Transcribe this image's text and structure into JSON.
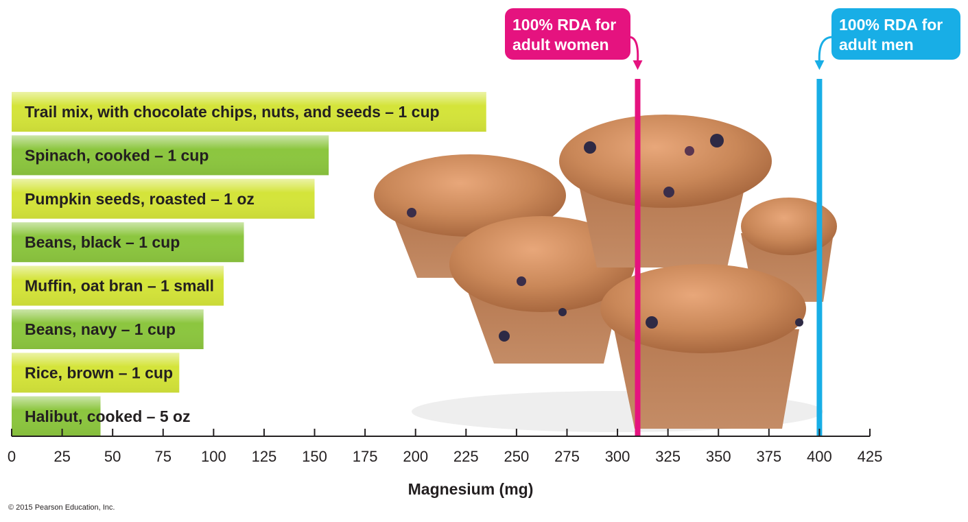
{
  "chart_data": {
    "type": "bar",
    "orientation": "horizontal",
    "categories": [
      "Trail mix, with chocolate chips, nuts, and seeds – 1 cup",
      "Spinach, cooked – 1 cup",
      "Pumpkin seeds, roasted – 1 oz",
      "Beans, black – 1 cup",
      "Muffin, oat bran – 1 small",
      "Beans, navy – 1 cup",
      "Rice, brown – 1 cup",
      "Halibut, cooked – 5 oz"
    ],
    "values": [
      235,
      157,
      150,
      115,
      105,
      95,
      83,
      44
    ],
    "bar_colors": [
      "#d4e43a",
      "#8cc63f",
      "#d4e43a",
      "#8cc63f",
      "#d4e43a",
      "#8cc63f",
      "#d4e43a",
      "#8cc63f"
    ],
    "xlabel": "Magnesium (mg)",
    "xlim": [
      0,
      425
    ],
    "xticks": [
      0,
      25,
      50,
      75,
      100,
      125,
      150,
      175,
      200,
      225,
      250,
      275,
      300,
      325,
      350,
      375,
      400,
      425
    ],
    "grid": false,
    "reference_lines": [
      {
        "value": 310,
        "label_lines": [
          "100% RDA for",
          "adult women"
        ],
        "color": "#e5137f"
      },
      {
        "value": 400,
        "label_lines": [
          "100% RDA for",
          "adult men"
        ],
        "color": "#18aee6"
      }
    ],
    "background_image": "oat bran muffins"
  },
  "copyright": "© 2015 Pearson Education, Inc."
}
